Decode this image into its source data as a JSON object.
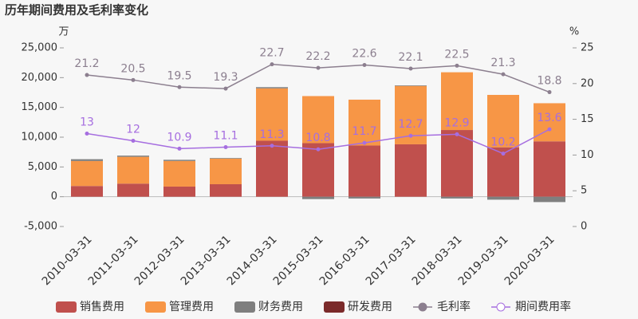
{
  "chart_data": {
    "type": "bar",
    "title": "历年期间费用及毛利率变化",
    "y_label": "万",
    "y2_label": "%",
    "categories": [
      "2010-03-31",
      "2011-03-31",
      "2012-03-31",
      "2013-03-31",
      "2014-03-31",
      "2015-03-31",
      "2016-03-31",
      "2017-03-31",
      "2018-03-31",
      "2019-03-31",
      "2020-03-31"
    ],
    "ylim": [
      -5000,
      25000
    ],
    "yticks": [
      {
        "value": -5000,
        "label": "-5,000"
      },
      0,
      {
        "value": 5000,
        "label": "5,000"
      },
      {
        "value": 10000,
        "label": "10,000"
      },
      {
        "value": 15000,
        "label": "15,000"
      },
      {
        "value": 20000,
        "label": "20,000"
      },
      {
        "value": 25000,
        "label": "25,000"
      }
    ],
    "y2lim": [
      0,
      25
    ],
    "y2ticks": [
      0,
      5,
      10,
      15,
      20,
      25
    ],
    "series": [
      {
        "name": "销售费用",
        "color": "#c0504d",
        "values": [
          1800,
          2200,
          1700,
          2100,
          9400,
          9000,
          8600,
          8800,
          11200,
          8300,
          9300
        ]
      },
      {
        "name": "管理费用",
        "color": "#f79646",
        "values": [
          4200,
          4500,
          4300,
          4300,
          8800,
          7900,
          7700,
          9800,
          9700,
          8800,
          6400
        ]
      },
      {
        "name": "财务费用",
        "color": "#7f7f7f",
        "values": [
          300,
          200,
          200,
          100,
          200,
          -400,
          -300,
          100,
          -300,
          -500,
          -900
        ]
      },
      {
        "name": "研发费用",
        "color": "#7b2a2a",
        "values": [
          0,
          0,
          0,
          0,
          0,
          0,
          0,
          0,
          0,
          0,
          0
        ]
      },
      {
        "name": "毛利率",
        "color": "#8c7f8f",
        "type": "line",
        "axis": "y2",
        "values": [
          21.2,
          20.5,
          19.5,
          19.3,
          22.7,
          22.2,
          22.6,
          22.1,
          22.5,
          21.3,
          18.8
        ]
      },
      {
        "name": "期间费用率",
        "color": "#a66ee0",
        "type": "line",
        "axis": "y2",
        "values": [
          13,
          12,
          10.9,
          11.1,
          11.3,
          10.8,
          11.7,
          12.7,
          12.9,
          10.2,
          13.6
        ]
      }
    ]
  }
}
